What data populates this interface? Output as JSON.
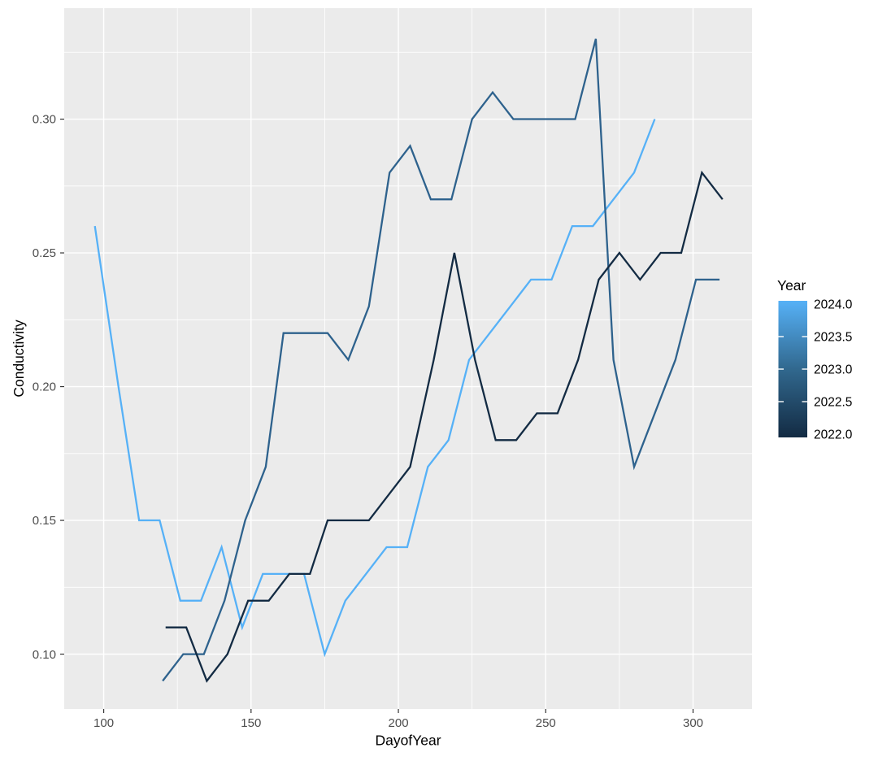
{
  "chart_data": {
    "type": "line",
    "title": "",
    "xlabel": "DayofYear",
    "ylabel": "Conductivity",
    "x_ticks": [
      100,
      150,
      200,
      250,
      300
    ],
    "x_tick_labels": [
      "100",
      "150",
      "200",
      "250",
      "300"
    ],
    "x_minor_ticks": [
      125,
      175,
      225,
      275
    ],
    "y_ticks": [
      0.1,
      0.15,
      0.2,
      0.25,
      0.3
    ],
    "y_tick_labels": [
      "0.10",
      "0.15",
      "0.20",
      "0.25",
      "0.30"
    ],
    "y_minor_ticks": [
      0.125,
      0.175,
      0.225,
      0.275,
      0.325
    ],
    "x_domain": [
      86.6,
      320
    ],
    "y_domain": [
      0.0795,
      0.3415
    ],
    "grid": true,
    "panel_bg": "#EBEBEB",
    "grid_color": "#FFFFFF",
    "tick_color": "#333333",
    "tick_label_color": "#4D4D4D",
    "axis_title_color": "#000000",
    "series": [
      {
        "name": "2022",
        "year": 2022,
        "color": "#132B43",
        "points": [
          [
            121,
            0.11
          ],
          [
            128,
            0.11
          ],
          [
            135,
            0.09
          ],
          [
            142,
            0.1
          ],
          [
            149,
            0.12
          ],
          [
            156,
            0.12
          ],
          [
            163,
            0.13
          ],
          [
            170,
            0.13
          ],
          [
            176,
            0.15
          ],
          [
            183,
            0.15
          ],
          [
            190,
            0.15
          ],
          [
            197,
            0.16
          ],
          [
            204,
            0.17
          ],
          [
            212,
            0.21
          ],
          [
            219,
            0.25
          ],
          [
            226,
            0.21
          ],
          [
            233,
            0.18
          ],
          [
            240,
            0.18
          ],
          [
            247,
            0.19
          ],
          [
            254,
            0.19
          ],
          [
            261,
            0.21
          ],
          [
            268,
            0.24
          ],
          [
            275,
            0.25
          ],
          [
            282,
            0.24
          ],
          [
            289,
            0.25
          ],
          [
            296,
            0.25
          ],
          [
            303,
            0.28
          ],
          [
            310,
            0.27
          ]
        ]
      },
      {
        "name": "2023",
        "year": 2023,
        "color": "#2E628D",
        "points": [
          [
            120,
            0.09
          ],
          [
            127,
            0.1
          ],
          [
            134,
            0.1
          ],
          [
            141,
            0.12
          ],
          [
            148,
            0.15
          ],
          [
            155,
            0.17
          ],
          [
            161,
            0.22
          ],
          [
            169,
            0.22
          ],
          [
            176,
            0.22
          ],
          [
            183,
            0.21
          ],
          [
            190,
            0.23
          ],
          [
            197,
            0.28
          ],
          [
            204,
            0.29
          ],
          [
            211,
            0.27
          ],
          [
            218,
            0.27
          ],
          [
            225,
            0.3
          ],
          [
            232,
            0.31
          ],
          [
            239,
            0.3
          ],
          [
            246,
            0.3
          ],
          [
            253,
            0.3
          ],
          [
            260,
            0.3
          ],
          [
            267,
            0.33
          ],
          [
            273,
            0.21
          ],
          [
            280,
            0.17
          ],
          [
            287,
            0.19
          ],
          [
            294,
            0.21
          ],
          [
            301,
            0.24
          ],
          [
            309,
            0.24
          ]
        ]
      },
      {
        "name": "2024",
        "year": 2024,
        "color": "#56B1F7",
        "points": [
          [
            97,
            0.26
          ],
          [
            105,
            0.2
          ],
          [
            112,
            0.15
          ],
          [
            119,
            0.15
          ],
          [
            126,
            0.12
          ],
          [
            133,
            0.12
          ],
          [
            140,
            0.14
          ],
          [
            147,
            0.11
          ],
          [
            154,
            0.13
          ],
          [
            161,
            0.13
          ],
          [
            168,
            0.13
          ],
          [
            175,
            0.1
          ],
          [
            182,
            0.12
          ],
          [
            189,
            0.13
          ],
          [
            196,
            0.14
          ],
          [
            203,
            0.14
          ],
          [
            210,
            0.17
          ],
          [
            217,
            0.18
          ],
          [
            224,
            0.21
          ],
          [
            231,
            0.22
          ],
          [
            238,
            0.23
          ],
          [
            245,
            0.24
          ],
          [
            252,
            0.24
          ],
          [
            259,
            0.26
          ],
          [
            266,
            0.26
          ],
          [
            273,
            0.27
          ],
          [
            280,
            0.28
          ],
          [
            287,
            0.3
          ]
        ]
      }
    ],
    "legend": {
      "title": "Year",
      "type": "colorbar",
      "position": "right",
      "labels": [
        "2024.0",
        "2023.5",
        "2023.0",
        "2022.5",
        "2022.0"
      ],
      "values": [
        2024.0,
        2023.5,
        2023.0,
        2022.5,
        2022.0
      ],
      "value_range": [
        2022.0,
        2024.0
      ],
      "tick_values": [
        2023.5,
        2023.0,
        2022.5
      ],
      "gradient_top": "#56B1F7",
      "gradient_mid": "#31688E",
      "gradient_bottom": "#132B43",
      "tick_mark_color": "#FFFFFF"
    }
  }
}
